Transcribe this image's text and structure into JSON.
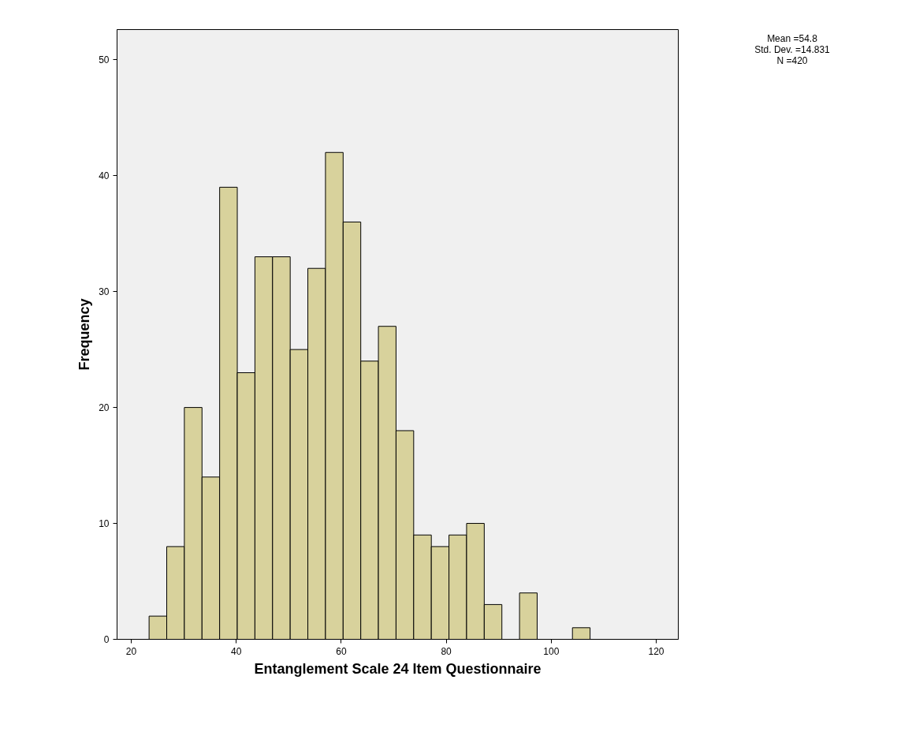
{
  "chart_data": {
    "type": "histogram",
    "xlabel": "Entanglement Scale 24 Item Questionnaire",
    "ylabel": "Frequency",
    "bins": [
      23.4,
      26.76,
      30.12,
      33.48,
      36.84,
      40.2,
      43.56,
      46.92,
      50.28,
      53.64,
      57.0,
      60.36,
      63.72,
      67.08,
      70.44,
      73.8,
      77.16,
      80.52,
      83.88,
      87.24,
      90.6,
      93.96,
      97.32,
      100.68,
      104.04,
      107.4
    ],
    "values": [
      2,
      8,
      20,
      14,
      39,
      23,
      33,
      33,
      25,
      32,
      42,
      36,
      24,
      27,
      18,
      9,
      8,
      9,
      10,
      3,
      0,
      4,
      0,
      0,
      1
    ],
    "color": "#d8d29c",
    "xlim": [
      17.3,
      124.2
    ],
    "xticks": [
      20,
      40,
      60,
      80,
      100,
      120
    ],
    "ylim": [
      0,
      52.6
    ],
    "yticks": [
      0,
      10,
      20,
      30,
      40,
      50
    ],
    "grid": false,
    "annotations": [
      "Mean =54.8",
      "Std. Dev. =14.831",
      "N =420"
    ]
  }
}
